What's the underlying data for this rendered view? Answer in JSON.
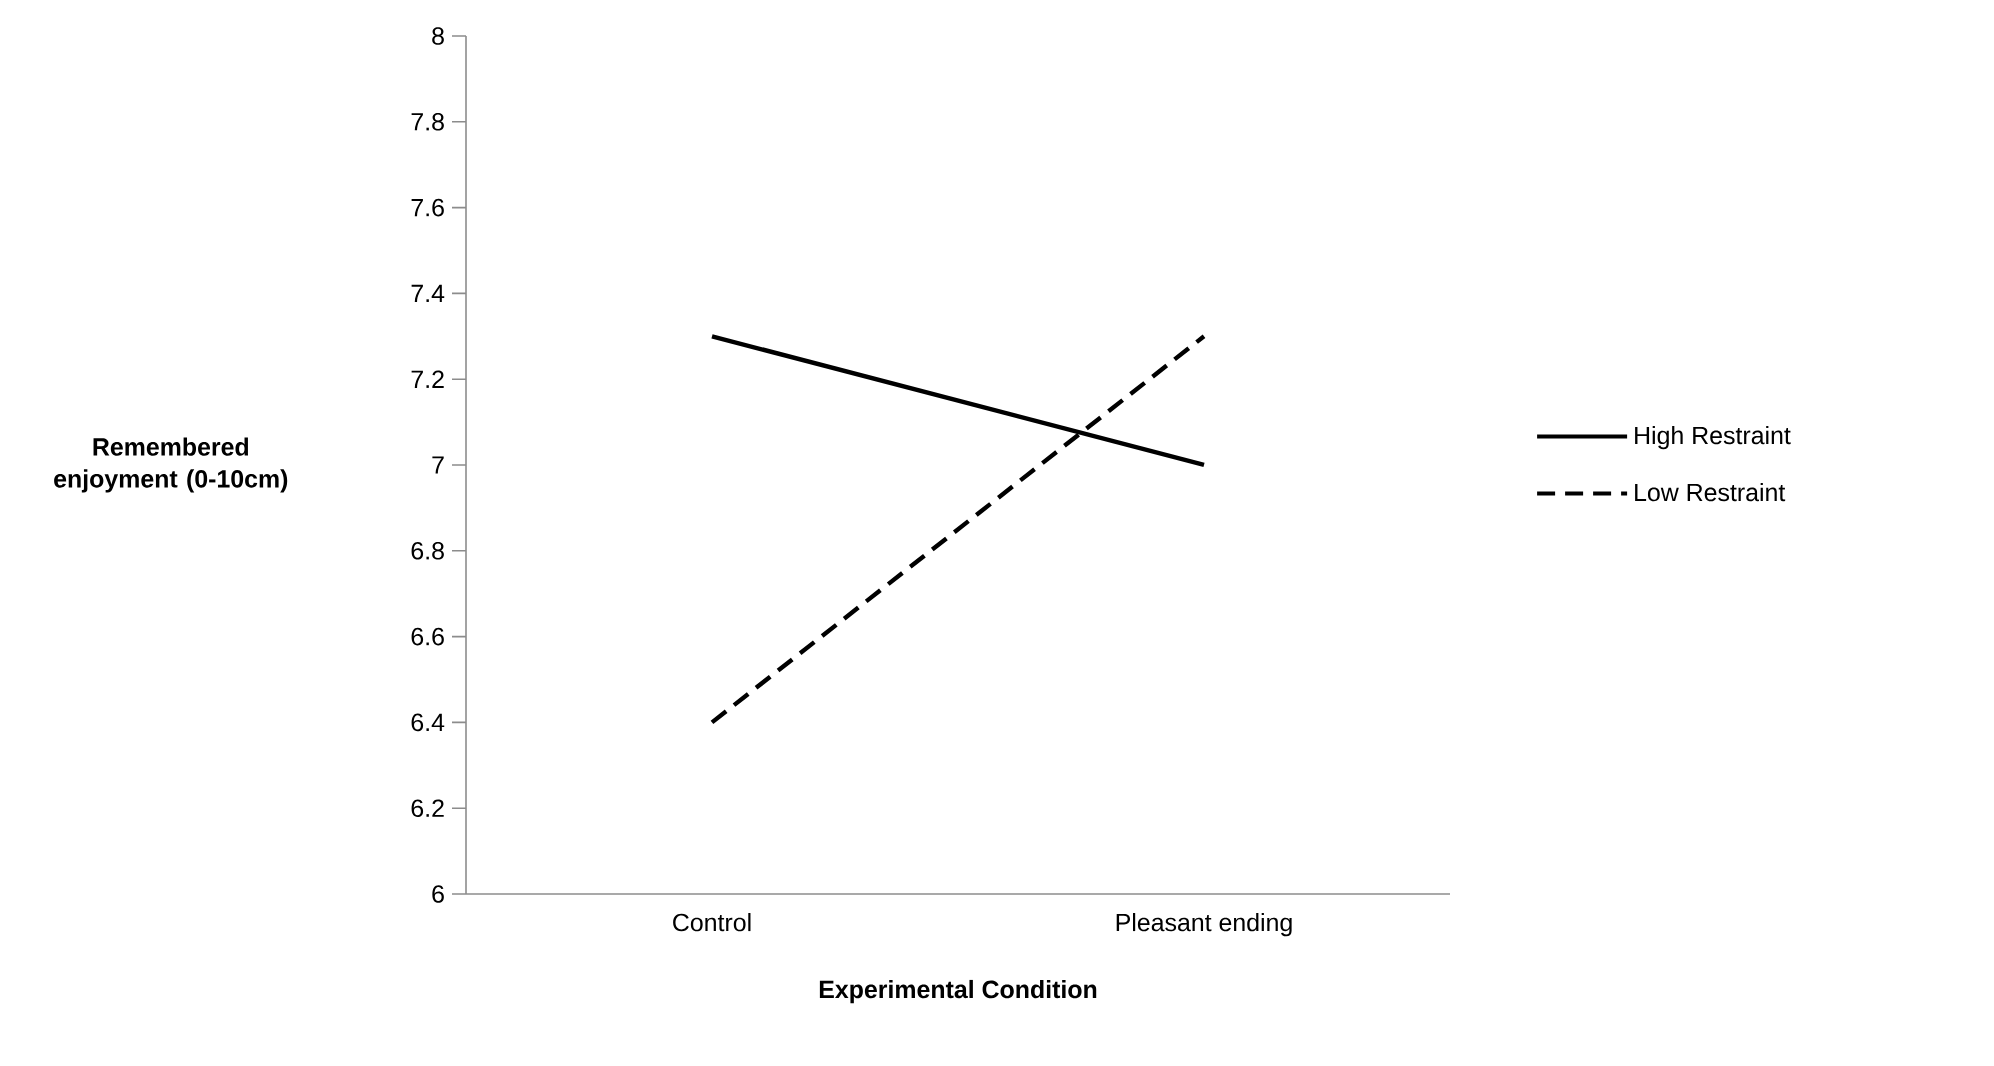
{
  "chart_data": {
    "type": "line",
    "xlabel": "Experimental Condition",
    "ylabel": "Remembered enjoyment (0-10cm)",
    "categories": [
      "Control",
      "Pleasant ending"
    ],
    "series": [
      {
        "name": "High Restraint",
        "color": "#000000",
        "line_style": "solid",
        "values": [
          7.3,
          7.0
        ]
      },
      {
        "name": "Low Restraint",
        "color": "#000000",
        "line_style": "dashed",
        "values": [
          6.4,
          7.3
        ]
      }
    ],
    "ylim": [
      6,
      8
    ],
    "yticks": [
      6,
      6.2,
      6.4,
      6.6,
      6.8,
      7,
      7.2,
      7.4,
      7.6,
      7.8,
      8
    ],
    "grid": false,
    "legend": "right",
    "marker": "none"
  }
}
